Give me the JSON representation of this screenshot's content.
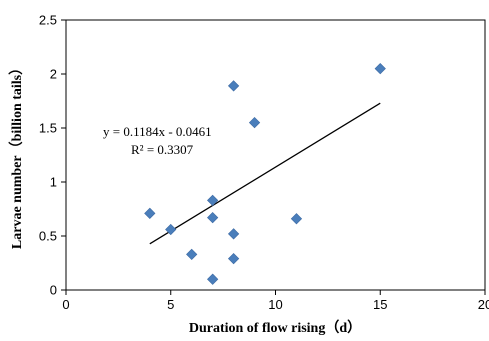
{
  "chart_data": {
    "type": "scatter",
    "title": "",
    "xlabel": "Duration of flow rising（d）",
    "ylabel": "Larvae number（billion tails）",
    "xlim": [
      0,
      20
    ],
    "ylim": [
      0,
      2.5
    ],
    "xticks": [
      "0",
      "5",
      "10",
      "15",
      "20"
    ],
    "yticks": [
      "0",
      "0.5",
      "1",
      "1.5",
      "2",
      "2.5"
    ],
    "grid": false,
    "legend": "none",
    "marker_color": "#4a7ebb",
    "trendline_color": "#000000",
    "points": [
      {
        "x": 4,
        "y": 0.71
      },
      {
        "x": 5,
        "y": 0.56
      },
      {
        "x": 6,
        "y": 0.33
      },
      {
        "x": 7,
        "y": 0.83
      },
      {
        "x": 7,
        "y": 0.67
      },
      {
        "x": 7,
        "y": 0.1
      },
      {
        "x": 8,
        "y": 1.89
      },
      {
        "x": 8,
        "y": 0.52
      },
      {
        "x": 8,
        "y": 0.29
      },
      {
        "x": 9,
        "y": 1.55
      },
      {
        "x": 11,
        "y": 0.66
      },
      {
        "x": 15,
        "y": 2.05
      }
    ],
    "trendline": {
      "slope": 0.1184,
      "intercept": -0.0461,
      "x_start": 4,
      "x_end": 15,
      "equation": "y = 0.1184x - 0.0461",
      "r2": "R² = 0.3307"
    }
  }
}
